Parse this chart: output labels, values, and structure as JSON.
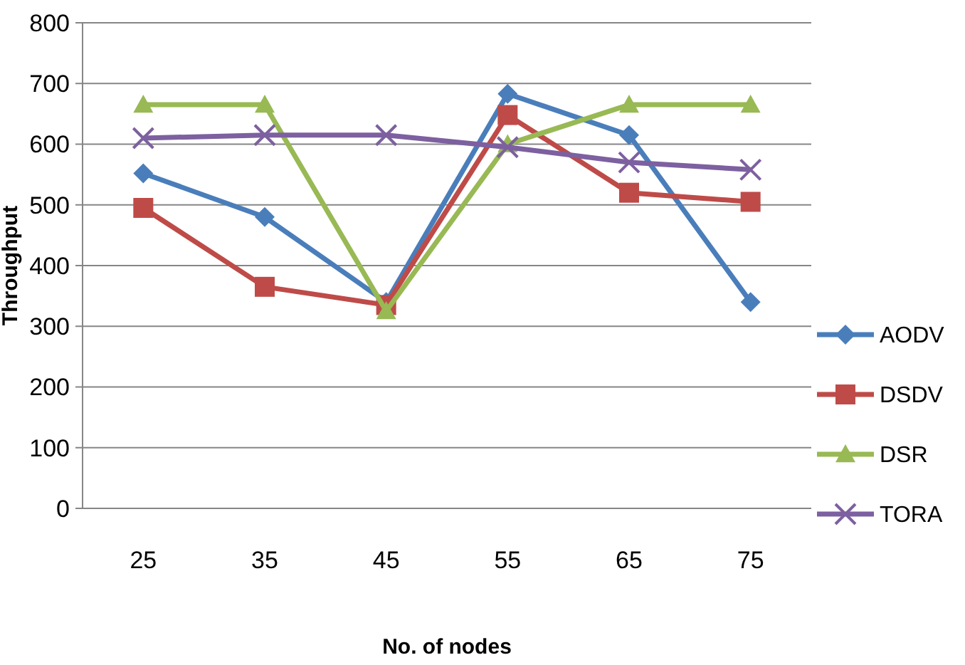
{
  "chart_data": {
    "type": "line",
    "xlabel": "No. of nodes",
    "ylabel": "Throughput",
    "categories": [
      "25",
      "35",
      "45",
      "55",
      "65",
      "75"
    ],
    "ylim": [
      0,
      800
    ],
    "yticks": [
      0,
      100,
      200,
      300,
      400,
      500,
      600,
      700,
      800
    ],
    "grid": "y",
    "legend": "right",
    "series": [
      {
        "name": "AODV",
        "color": "#4a7ebb",
        "marker": "diamond",
        "values": [
          552,
          480,
          340,
          683,
          615,
          340
        ]
      },
      {
        "name": "DSDV",
        "color": "#be4b48",
        "marker": "square",
        "values": [
          495,
          365,
          335,
          648,
          520,
          505
        ]
      },
      {
        "name": "DSR",
        "color": "#98b954",
        "marker": "triangle",
        "values": [
          665,
          665,
          325,
          600,
          665,
          665
        ]
      },
      {
        "name": "TORA",
        "color": "#7d60a0",
        "marker": "cross",
        "values": [
          610,
          615,
          615,
          595,
          570,
          558
        ]
      }
    ]
  }
}
